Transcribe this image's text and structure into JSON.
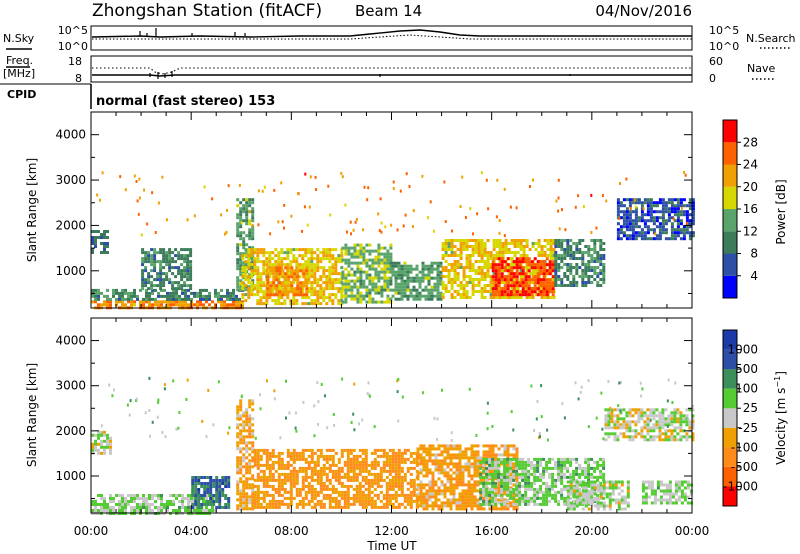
{
  "header": {
    "station": "Zhongshan Station (fitACF)",
    "beam": "Beam 14",
    "date": "04/Nov/2016"
  },
  "sky_panel": {
    "left_label": "N.Sky",
    "left_ticks": [
      "10^5",
      "10^0"
    ],
    "right_ticks": [
      "10^5",
      "10^0"
    ],
    "right_label": "N.Search"
  },
  "freq_panel": {
    "left_label": "Freq.",
    "left_unit": "[MHz]",
    "left_ticks": [
      "18",
      "8"
    ],
    "right_ticks": [
      "60",
      "0"
    ],
    "right_label": "Nave"
  },
  "cpid_panel": {
    "label": "CPID",
    "mode": "normal (fast stereo) 153"
  },
  "time_axis": {
    "label": "Time UT",
    "ticks": [
      "00:00",
      "04:00",
      "08:00",
      "12:00",
      "16:00",
      "20:00",
      "00:00"
    ]
  },
  "range_axis": {
    "label": "Slant Range [km]",
    "ticks": [
      "1000",
      "2000",
      "3000",
      "4000"
    ]
  },
  "colors": {
    "power": [
      "#0000ff",
      "#2e4fa8",
      "#3c7c5a",
      "#5aa36a",
      "#d7d700",
      "#f0a000",
      "#ff6000",
      "#ff0000"
    ],
    "velocity": [
      "#ff0000",
      "#ff6000",
      "#ff8c1a",
      "#f0a000",
      "#c8c8c8",
      "#55cc33",
      "#3c8f5a",
      "#2e4fa8",
      "#1c3aa8"
    ]
  },
  "chart_data": [
    {
      "type": "heatmap",
      "title": "Power",
      "ylabel": "Slant Range [km]",
      "xlabel": "",
      "xlim": [
        "00:00",
        "24:00"
      ],
      "ylim": [
        180,
        4500
      ],
      "colorbar": {
        "label": "Power [dB]",
        "ticks": [
          "4",
          "8",
          "12",
          "16",
          "20",
          "24",
          "28"
        ],
        "range": [
          0,
          30
        ]
      },
      "regions": [
        {
          "t": [
            0.0,
            6.0
          ],
          "r": [
            200,
            350
          ],
          "value": 22
        },
        {
          "t": [
            0.0,
            6.0
          ],
          "r": [
            350,
            600
          ],
          "value": 10
        },
        {
          "t": [
            0.0,
            0.6
          ],
          "r": [
            1400,
            1900
          ],
          "value": 8
        },
        {
          "t": [
            2.0,
            4.0
          ],
          "r": [
            600,
            1500
          ],
          "value": 10
        },
        {
          "t": [
            5.8,
            6.4
          ],
          "r": [
            600,
            2600
          ],
          "value": 12
        },
        {
          "t": [
            6.0,
            10.0
          ],
          "r": [
            300,
            1500
          ],
          "value": 18
        },
        {
          "t": [
            7.0,
            8.6
          ],
          "r": [
            500,
            1100
          ],
          "value": 22
        },
        {
          "t": [
            10.0,
            12.0
          ],
          "r": [
            300,
            1600
          ],
          "value": 14
        },
        {
          "t": [
            12.0,
            14.0
          ],
          "r": [
            400,
            1200
          ],
          "value": 12
        },
        {
          "t": [
            14.0,
            18.5
          ],
          "r": [
            400,
            1700
          ],
          "value": 18
        },
        {
          "t": [
            16.0,
            18.5
          ],
          "r": [
            500,
            1300
          ],
          "value": 26
        },
        {
          "t": [
            18.5,
            20.5
          ],
          "r": [
            700,
            1700
          ],
          "value": 10
        },
        {
          "t": [
            21.0,
            24.0
          ],
          "r": [
            1700,
            2600
          ],
          "value": 6
        }
      ]
    },
    {
      "type": "heatmap",
      "title": "Velocity",
      "ylabel": "Slant Range [km]",
      "xlabel": "Time UT",
      "xlim": [
        "00:00",
        "24:00"
      ],
      "ylim": [
        180,
        4500
      ],
      "colorbar": {
        "label": "Velocity [m s^-1]",
        "ticks": [
          "-1000",
          "-500",
          "-100",
          "-25",
          "25",
          "100",
          "500",
          "1000"
        ],
        "range": [
          -1200,
          1200
        ]
      },
      "regions": [
        {
          "t": [
            0.0,
            5.0
          ],
          "r": [
            200,
            600
          ],
          "value": 150
        },
        {
          "t": [
            0.0,
            0.8
          ],
          "r": [
            1500,
            2000
          ],
          "value": 10
        },
        {
          "t": [
            4.0,
            5.5
          ],
          "r": [
            300,
            1000
          ],
          "value": 700
        },
        {
          "t": [
            5.8,
            6.5
          ],
          "r": [
            300,
            2700
          ],
          "value": -300
        },
        {
          "t": [
            6.5,
            13.0
          ],
          "r": [
            300,
            1600
          ],
          "value": -400
        },
        {
          "t": [
            13.0,
            17.0
          ],
          "r": [
            300,
            1700
          ],
          "value": -350
        },
        {
          "t": [
            15.5,
            20.5
          ],
          "r": [
            400,
            1400
          ],
          "value": 200
        },
        {
          "t": [
            19.0,
            21.5
          ],
          "r": [
            300,
            900
          ],
          "value": 80
        },
        {
          "t": [
            20.5,
            24.0
          ],
          "r": [
            1800,
            2500
          ],
          "value": 0
        },
        {
          "t": [
            22.0,
            24.0
          ],
          "r": [
            400,
            900
          ],
          "value": 150
        }
      ]
    }
  ]
}
